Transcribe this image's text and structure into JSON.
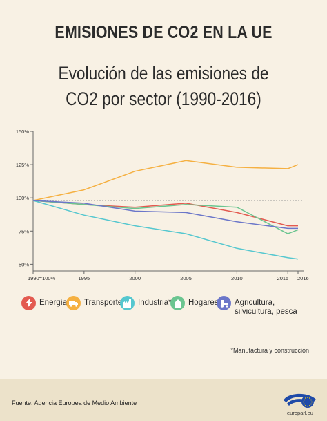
{
  "header": {
    "title": "EMISIONES DE CO2 EN LA UE",
    "subtitle_line1": "Evolución de las emisiones de",
    "subtitle_line2": "CO2 por sector (1990-2016)"
  },
  "chart_data": {
    "type": "line",
    "x": [
      1990,
      1995,
      2000,
      2005,
      2010,
      2015,
      2016
    ],
    "x_tick_labels": [
      "1990=100%",
      "1995",
      "2000",
      "2005",
      "2010",
      "2015",
      "2016"
    ],
    "y_tick_labels": [
      "150%",
      "125%",
      "100%",
      "75%",
      "50%"
    ],
    "y_ticks": [
      150,
      125,
      100,
      75,
      50
    ],
    "ylim": [
      45,
      150
    ],
    "xlim": [
      1990,
      2016
    ],
    "reference_line": 98,
    "reference_style": "dashed",
    "grid": false,
    "legend_position": "bottom",
    "series": [
      {
        "name": "Energía",
        "color": "#e35a50",
        "values": [
          98,
          95,
          93,
          96,
          89,
          79,
          79
        ]
      },
      {
        "name": "Transporte",
        "color": "#f5b041",
        "values": [
          98,
          106,
          120,
          128,
          123,
          122,
          125
        ]
      },
      {
        "name": "Industria*",
        "color": "#55c7cf",
        "values": [
          98,
          87,
          79,
          73,
          62,
          55,
          54
        ]
      },
      {
        "name": "Hogares",
        "color": "#6bc590",
        "values": [
          98,
          95,
          92,
          95,
          93,
          73,
          76
        ]
      },
      {
        "name": "Agricultura, silvicultura, pesca",
        "color": "#6b76c9",
        "values": [
          98,
          96,
          90,
          89,
          82,
          77,
          77
        ]
      }
    ]
  },
  "legend": {
    "items": [
      {
        "label": "Energía",
        "icon": "lightning-icon",
        "color": "#e35a50"
      },
      {
        "label": "Transporte",
        "icon": "truck-icon",
        "color": "#f5b041"
      },
      {
        "label": "Industria*",
        "icon": "factory-icon",
        "color": "#55c7cf"
      },
      {
        "label": "Hogares",
        "icon": "house-icon",
        "color": "#6bc590"
      },
      {
        "label": "Agricultura, silvicultura, pesca",
        "icon": "tractor-icon",
        "color": "#6b76c9"
      }
    ]
  },
  "footnote": "*Manufactura y construcción",
  "footer": {
    "source": "Fuente: Agencia Europea de Medio Ambiente",
    "logo_text": "europarl.eu"
  },
  "colors": {
    "background": "#f8f1e4",
    "footer_band": "#ece2ca",
    "axis": "#555555",
    "logo_blue": "#1f4aa8",
    "star_yellow": "#ffd400"
  }
}
